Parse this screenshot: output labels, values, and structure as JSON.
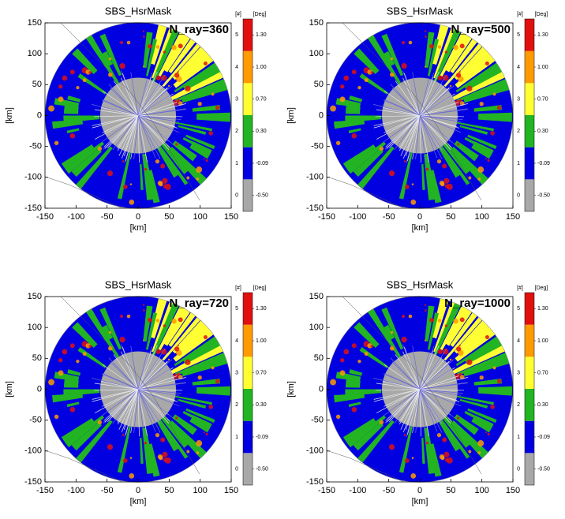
{
  "chart_data": [
    {
      "type": "radar-map",
      "title": "SBS_HsrMask",
      "annotation": "N_ray=360",
      "xlabel": "[km]",
      "ylabel": "[km]",
      "xlim": [
        -150,
        150
      ],
      "ylim": [
        -150,
        150
      ],
      "xticks": [
        -150,
        -100,
        -50,
        0,
        50,
        100,
        150
      ],
      "yticks": [
        -150,
        -100,
        -50,
        0,
        50,
        100,
        150
      ],
      "colorbar": {
        "left_unit": "[#]",
        "right_unit": "[Deg]",
        "levels": [
          0,
          1,
          2,
          3,
          4,
          5
        ],
        "colors": [
          "#a8a8a8",
          "#0000e0",
          "#22b422",
          "#ffff33",
          "#ff9a00",
          "#e01010"
        ],
        "ticks": [
          {
            "value": -0.5,
            "label": "-0.50"
          },
          {
            "value": -0.09,
            "label": "-0.09"
          },
          {
            "value": 0.3,
            "label": "0.30"
          },
          {
            "value": 0.7,
            "label": "0.70"
          },
          {
            "value": 1.0,
            "label": "1.00"
          },
          {
            "value": 1.3,
            "label": "1.30"
          }
        ]
      }
    },
    {
      "type": "radar-map",
      "title": "SBS_HsrMask",
      "annotation": "N_ray=500",
      "xlabel": "[km]",
      "ylabel": "[km]",
      "xlim": [
        -150,
        150
      ],
      "ylim": [
        -150,
        150
      ],
      "xticks": [
        -150,
        -100,
        -50,
        0,
        50,
        100,
        150
      ],
      "yticks": [
        -150,
        -100,
        -50,
        0,
        50,
        100,
        150
      ],
      "colorbar": {
        "left_unit": "[#]",
        "right_unit": "[Deg]",
        "levels": [
          0,
          1,
          2,
          3,
          4,
          5
        ],
        "colors": [
          "#a8a8a8",
          "#0000e0",
          "#22b422",
          "#ffff33",
          "#ff9a00",
          "#e01010"
        ],
        "ticks": [
          {
            "value": -0.5,
            "label": "-0.50"
          },
          {
            "value": -0.09,
            "label": "-0.09"
          },
          {
            "value": 0.3,
            "label": "0.30"
          },
          {
            "value": 0.7,
            "label": "0.70"
          },
          {
            "value": 1.0,
            "label": "1.00"
          },
          {
            "value": 1.3,
            "label": "1.30"
          }
        ]
      }
    },
    {
      "type": "radar-map",
      "title": "SBS_HsrMask",
      "annotation": "N_ray=720",
      "xlabel": "[km]",
      "ylabel": "[km]",
      "xlim": [
        -150,
        150
      ],
      "ylim": [
        -150,
        150
      ],
      "xticks": [
        -150,
        -100,
        -50,
        0,
        50,
        100,
        150
      ],
      "yticks": [
        -150,
        -100,
        -50,
        0,
        50,
        100,
        150
      ],
      "colorbar": {
        "left_unit": "[#]",
        "right_unit": "[Deg]",
        "levels": [
          0,
          1,
          2,
          3,
          4,
          5
        ],
        "colors": [
          "#a8a8a8",
          "#0000e0",
          "#22b422",
          "#ffff33",
          "#ff9a00",
          "#e01010"
        ],
        "ticks": [
          {
            "value": -0.5,
            "label": "-0.50"
          },
          {
            "value": -0.09,
            "label": "-0.09"
          },
          {
            "value": 0.3,
            "label": "0.30"
          },
          {
            "value": 0.7,
            "label": "0.70"
          },
          {
            "value": 1.0,
            "label": "1.00"
          },
          {
            "value": 1.3,
            "label": "1.30"
          }
        ]
      }
    },
    {
      "type": "radar-map",
      "title": "SBS_HsrMask",
      "annotation": "N_ray=1000",
      "xlabel": "[km]",
      "ylabel": "[km]",
      "xlim": [
        -150,
        150
      ],
      "ylim": [
        -150,
        150
      ],
      "xticks": [
        -150,
        -100,
        -50,
        0,
        50,
        100,
        150
      ],
      "yticks": [
        -150,
        -100,
        -50,
        0,
        50,
        100,
        150
      ],
      "colorbar": {
        "left_unit": "[#]",
        "right_unit": "[Deg]",
        "levels": [
          0,
          1,
          2,
          3,
          4,
          5
        ],
        "colors": [
          "#a8a8a8",
          "#0000e0",
          "#22b422",
          "#ffff33",
          "#ff9a00",
          "#e01010"
        ],
        "ticks": [
          {
            "value": -0.5,
            "label": "-0.50"
          },
          {
            "value": -0.09,
            "label": "-0.09"
          },
          {
            "value": 0.3,
            "label": "0.30"
          },
          {
            "value": 0.7,
            "label": "0.70"
          },
          {
            "value": 1.0,
            "label": "1.00"
          },
          {
            "value": 1.3,
            "label": "1.30"
          }
        ]
      }
    }
  ]
}
